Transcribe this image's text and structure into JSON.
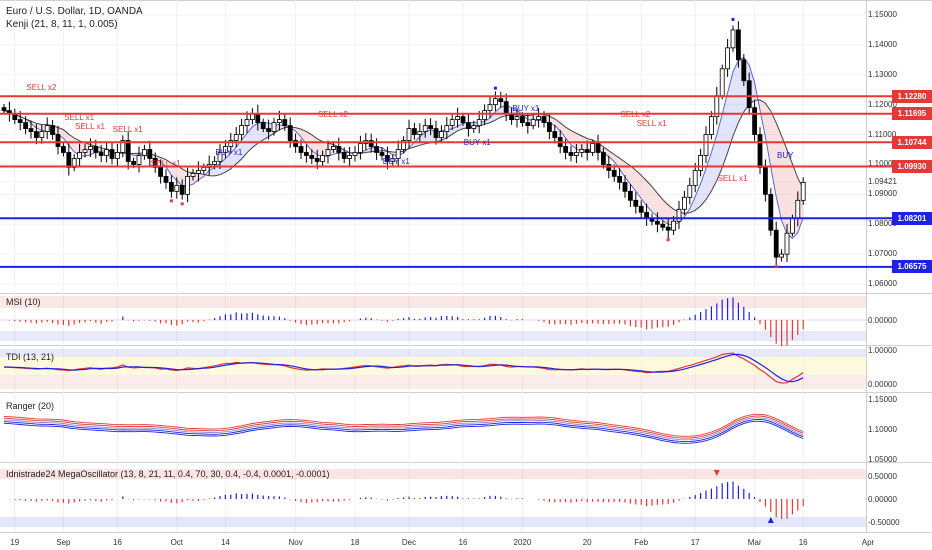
{
  "header": {
    "symbol_line": "Euro / U.S. Dollar, 1D, OANDA",
    "indicator_line": "Kenji (21, 8, 11, 1, 0.005)"
  },
  "panels": {
    "msi": {
      "title": "MSI (10)",
      "axis": [
        "0.00000"
      ]
    },
    "tdi": {
      "title": "TDI (13, 21)",
      "axis": [
        "1.00000",
        "0.00000"
      ]
    },
    "ranger": {
      "title": "Ranger (20)",
      "axis": [
        "1.15000",
        "1.10000",
        "1.05000"
      ]
    },
    "mega": {
      "title": "Idnistrade24 MegaOscillator (13, 8, 21, 11, 0.4, 70, 30, 0.4, -0.4, 0.0001, -0.0001)",
      "axis": [
        "0.50000",
        "0.00000",
        "-0.50000"
      ]
    }
  },
  "chart_data": {
    "type": "candlestick",
    "instrument": "Euro / U.S. Dollar",
    "timeframe": "1D",
    "price_ticks": [
      "1.15000",
      "1.14000",
      "1.13000",
      "1.12000",
      "1.11000",
      "1.10000",
      "1.09421",
      "1.09000",
      "1.08000",
      "1.07000",
      "1.06000"
    ],
    "ylim": [
      1.058,
      1.153
    ],
    "levels": [
      {
        "label": "1.12280",
        "value": 1.1228,
        "color": "#e53935"
      },
      {
        "label": "1.11695",
        "value": 1.11695,
        "color": "#e53935"
      },
      {
        "label": "1.10744",
        "value": 1.10744,
        "color": "#e53935"
      },
      {
        "label": "1.09930",
        "value": 1.0993,
        "color": "#e53935"
      },
      {
        "label": "1.08201",
        "value": 1.08201,
        "color": "#1e22e6"
      },
      {
        "label": "1.06575",
        "value": 1.06575,
        "color": "#1e22e6"
      }
    ],
    "last_price": "1.09421",
    "x_labels": [
      {
        "label": "19",
        "index": 2
      },
      {
        "label": "Sep",
        "index": 11
      },
      {
        "label": "16",
        "index": 21
      },
      {
        "label": "Oct",
        "index": 32
      },
      {
        "label": "14",
        "index": 41
      },
      {
        "label": "Nov",
        "index": 54
      },
      {
        "label": "18",
        "index": 65
      },
      {
        "label": "Dec",
        "index": 75
      },
      {
        "label": "16",
        "index": 85
      },
      {
        "label": "2020",
        "index": 96
      },
      {
        "label": "20",
        "index": 108
      },
      {
        "label": "Feb",
        "index": 118
      },
      {
        "label": "17",
        "index": 128
      },
      {
        "label": "Mar",
        "index": 139
      },
      {
        "label": "16",
        "index": 148
      },
      {
        "label": "Apr",
        "index": 160
      }
    ],
    "close_series": [
      1.118,
      1.117,
      1.115,
      1.114,
      1.112,
      1.111,
      1.109,
      1.111,
      1.113,
      1.11,
      1.106,
      1.104,
      1.099,
      1.102,
      1.104,
      1.105,
      1.106,
      1.104,
      1.103,
      1.105,
      1.102,
      1.104,
      1.108,
      1.101,
      1.1,
      1.103,
      1.105,
      1.102,
      1.099,
      1.096,
      1.094,
      1.091,
      1.093,
      1.09,
      1.096,
      1.097,
      1.098,
      1.099,
      1.1,
      1.101,
      1.104,
      1.106,
      1.108,
      1.11,
      1.113,
      1.115,
      1.117,
      1.114,
      1.112,
      1.111,
      1.114,
      1.115,
      1.113,
      1.108,
      1.106,
      1.104,
      1.103,
      1.102,
      1.101,
      1.103,
      1.105,
      1.106,
      1.104,
      1.102,
      1.103,
      1.104,
      1.107,
      1.108,
      1.106,
      1.104,
      1.103,
      1.101,
      1.102,
      1.105,
      1.108,
      1.112,
      1.11,
      1.111,
      1.113,
      1.112,
      1.109,
      1.111,
      1.113,
      1.115,
      1.116,
      1.114,
      1.112,
      1.113,
      1.115,
      1.118,
      1.12,
      1.122,
      1.121,
      1.117,
      1.115,
      1.116,
      1.114,
      1.113,
      1.115,
      1.116,
      1.114,
      1.111,
      1.109,
      1.106,
      1.104,
      1.103,
      1.104,
      1.105,
      1.104,
      1.107,
      1.104,
      1.1,
      1.098,
      1.096,
      1.094,
      1.091,
      1.088,
      1.086,
      1.084,
      1.082,
      1.081,
      1.08,
      1.079,
      1.078,
      1.081,
      1.085,
      1.089,
      1.093,
      1.098,
      1.103,
      1.11,
      1.116,
      1.123,
      1.132,
      1.139,
      1.145,
      1.135,
      1.128,
      1.119,
      1.11,
      1.099,
      1.09,
      1.078,
      1.069,
      1.07,
      1.077,
      1.082,
      1.088,
      1.094
    ],
    "signals": [
      {
        "label": "SELL x2",
        "index": 6,
        "value": 1.124,
        "kind": "sell"
      },
      {
        "label": "SELL x1",
        "index": 13,
        "value": 1.114,
        "kind": "sell"
      },
      {
        "label": "SELL x1",
        "index": 15,
        "value": 1.111,
        "kind": "sell"
      },
      {
        "label": "SELL x1",
        "index": 22,
        "value": 1.11,
        "kind": "sell"
      },
      {
        "label": "SELL x1",
        "index": 29,
        "value": 1.0985,
        "kind": "sell"
      },
      {
        "label": "BUY x1",
        "index": 41,
        "value": 1.102,
        "kind": "buy"
      },
      {
        "label": "SELL x2",
        "index": 60,
        "value": 1.115,
        "kind": "sell"
      },
      {
        "label": "BUY x1",
        "index": 72,
        "value": 1.099,
        "kind": "buy"
      },
      {
        "label": "BUY x1",
        "index": 87,
        "value": 1.1055,
        "kind": "buy"
      },
      {
        "label": "BUY x1",
        "index": 96,
        "value": 1.117,
        "kind": "buy"
      },
      {
        "label": "SELL x2",
        "index": 116,
        "value": 1.115,
        "kind": "sell"
      },
      {
        "label": "SELL x1",
        "index": 119,
        "value": 1.112,
        "kind": "sell"
      },
      {
        "label": "SELL x1",
        "index": 134,
        "value": 1.0935,
        "kind": "sell"
      },
      {
        "label": "BUY",
        "index": 145,
        "value": 1.101,
        "kind": "buy"
      }
    ]
  },
  "colors": {
    "up": "#ffffff",
    "down": "#000000",
    "red": "#e53935",
    "blue": "#1e22e6"
  }
}
